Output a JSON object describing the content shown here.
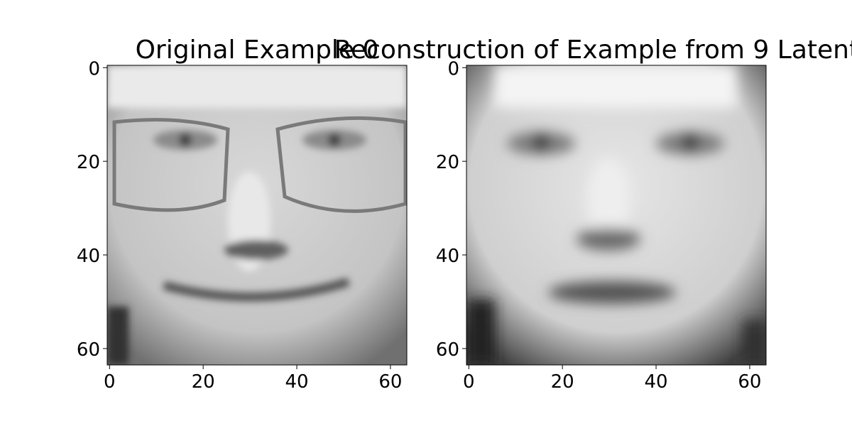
{
  "chart_data": [
    {
      "type": "image",
      "title": "Original Example 0",
      "xlim": [
        -0.5,
        63.5
      ],
      "ylim": [
        63.5,
        -0.5
      ],
      "xticks": [
        0,
        20,
        40,
        60
      ],
      "yticks": [
        0,
        20,
        40,
        60
      ]
    },
    {
      "type": "image",
      "title": "Reconstruction of Example from 9 Latent Va",
      "xlim": [
        -0.5,
        63.5
      ],
      "ylim": [
        63.5,
        -0.5
      ],
      "xticks": [
        0,
        20,
        40,
        60
      ],
      "yticks": [
        0,
        20,
        40,
        60
      ]
    }
  ]
}
